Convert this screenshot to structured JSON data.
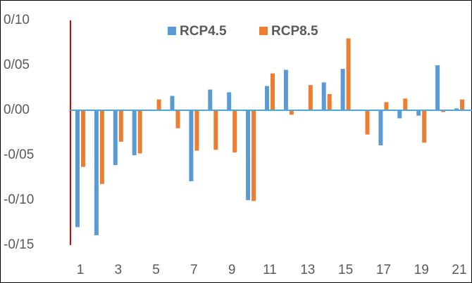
{
  "chart_data": {
    "type": "bar",
    "categories": [
      "1",
      null,
      "3",
      null,
      "5",
      null,
      "7",
      null,
      "9",
      null,
      "11",
      null,
      "13",
      null,
      "15",
      null,
      "17",
      null,
      "19",
      null,
      "21"
    ],
    "series": [
      {
        "name": "RCP4.5",
        "color": "#5b9bd5",
        "values": [
          -0.13,
          -0.139,
          -0.061,
          -0.05,
          0,
          0.016,
          -0.079,
          0.023,
          0.02,
          -0.1,
          0.027,
          0.045,
          0,
          0.031,
          0.046,
          0,
          -0.039,
          -0.009,
          -0.006,
          0.05,
          0.002
        ]
      },
      {
        "name": "RCP8.5",
        "color": "#ed7d31",
        "values": [
          -0.063,
          -0.082,
          -0.035,
          -0.048,
          0.012,
          -0.02,
          -0.045,
          -0.044,
          -0.047,
          -0.101,
          0.041,
          -0.005,
          0.028,
          0.018,
          0.08,
          -0.027,
          0.009,
          0.013,
          -0.036,
          -0.002,
          0.012
        ]
      }
    ],
    "ylim": [
      -0.15,
      0.1
    ],
    "yticks": [
      {
        "value": 0.1,
        "label": "0/10"
      },
      {
        "value": 0.05,
        "label": "0/05"
      },
      {
        "value": 0,
        "label": "0/00"
      },
      {
        "value": -0.05,
        "label": "-0/05"
      },
      {
        "value": -0.1,
        "label": "-0/10"
      },
      {
        "value": -0.15,
        "label": "-0/15"
      }
    ],
    "grid": false,
    "legend": "top"
  }
}
